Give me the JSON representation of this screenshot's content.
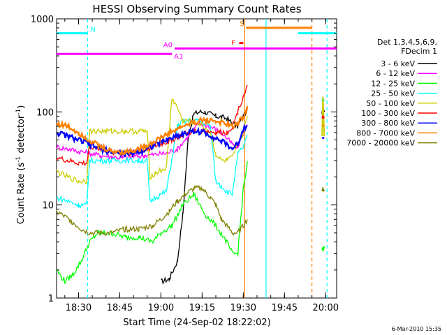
{
  "chart_data": {
    "type": "line",
    "title": "HESSI Observing Summary Count Rates",
    "xlabel": "Start Time (24-Sep-02 18:22:02)",
    "ylabel_main": "Count Rate (s",
    "ylabel_sup1": "-1",
    "ylabel_mid": " detector",
    "ylabel_sup2": "-1",
    "ylabel_end": ")",
    "y_scale": "log",
    "ylim": [
      1,
      1000
    ],
    "xlim_minutes": [
      0,
      102
    ],
    "x_ticks": [
      {
        "minute": 8,
        "label": "18:30"
      },
      {
        "minute": 23,
        "label": "18:45"
      },
      {
        "minute": 38,
        "label": "19:00"
      },
      {
        "minute": 53,
        "label": "19:15"
      },
      {
        "minute": 68,
        "label": "19:30"
      },
      {
        "minute": 83,
        "label": "19:45"
      },
      {
        "minute": 98,
        "label": "20:00"
      }
    ],
    "y_ticks": [
      {
        "value": 1,
        "label": "1"
      },
      {
        "value": 10,
        "label": "10"
      },
      {
        "value": 100,
        "label": "100"
      },
      {
        "value": 1000,
        "label": "1000"
      }
    ],
    "legend_title1": "Det 1,3,4,5,6,9,",
    "legend_title2": "FDecim 1",
    "legend_position": "right",
    "series": [
      {
        "name": "3 - 6 keV",
        "color": "#000000",
        "x": [
          0,
          5,
          10,
          15,
          20,
          25,
          30,
          35,
          38,
          41,
          44,
          46,
          48,
          50,
          52,
          54,
          56,
          58,
          60,
          62,
          64,
          66,
          68,
          69.5
        ],
        "y": [
          null,
          null,
          null,
          null,
          null,
          null,
          null,
          null,
          1.5,
          1.6,
          2.5,
          8,
          55,
          95,
          100,
          100,
          95,
          90,
          88,
          85,
          75,
          70,
          90,
          105
        ]
      },
      {
        "name": "6 - 12 keV",
        "color": "#ff00ff",
        "x": [
          0,
          4,
          8,
          12,
          16,
          20,
          24,
          28,
          32,
          36,
          40,
          44,
          48,
          52,
          56,
          60,
          64,
          66,
          68,
          69.5
        ],
        "y": [
          42,
          40,
          38,
          36,
          34,
          33,
          32,
          33,
          34,
          35,
          36,
          40,
          55,
          75,
          70,
          60,
          45,
          42,
          60,
          75
        ]
      },
      {
        "name": "12 - 25 keV",
        "color": "#00ff00",
        "x": [
          0,
          3,
          6,
          9,
          12,
          15,
          20,
          25,
          30,
          35,
          38,
          42,
          46,
          50,
          54,
          58,
          62,
          64,
          66,
          68,
          69.5
        ],
        "y": [
          2,
          1.5,
          1.8,
          2.5,
          4,
          5,
          5,
          4.5,
          4.5,
          4,
          5,
          6,
          10,
          13,
          8,
          6,
          4,
          3,
          3,
          15,
          28
        ]
      },
      {
        "name": "25 - 50 keV",
        "color": "#00ffff",
        "x": [
          0,
          4,
          8,
          11,
          12,
          16,
          20,
          25,
          30,
          33,
          34,
          36,
          40,
          44,
          46,
          48,
          52,
          56,
          58,
          60,
          62,
          64,
          66,
          68,
          69.5
        ],
        "y": [
          12,
          11,
          10,
          10,
          30,
          30,
          30,
          30,
          30,
          30,
          11,
          12,
          14,
          70,
          78,
          80,
          80,
          70,
          18,
          16,
          14,
          13,
          35,
          42,
          55
        ]
      },
      {
        "name": "50 - 100 keV",
        "color": "#cccc00",
        "x": [
          0,
          4,
          8,
          11,
          12,
          16,
          20,
          25,
          30,
          33,
          34,
          36,
          40,
          42,
          44,
          46,
          48,
          52,
          56,
          58,
          60,
          62,
          64,
          66,
          68,
          69.5
        ],
        "y": [
          23,
          20,
          18,
          18,
          62,
          62,
          62,
          62,
          62,
          62,
          20,
          22,
          25,
          140,
          110,
          80,
          80,
          75,
          60,
          35,
          30,
          30,
          32,
          45,
          60,
          90
        ]
      },
      {
        "name": "100 - 300 keV",
        "color": "#ff0000",
        "x": [
          0,
          4,
          8,
          11,
          12,
          16,
          20,
          25,
          30,
          35,
          40,
          45,
          50,
          54,
          58,
          62,
          64,
          66,
          68,
          69.5
        ],
        "y": [
          32,
          30,
          28,
          28,
          43,
          40,
          37,
          36,
          38,
          42,
          47,
          55,
          62,
          62,
          60,
          60,
          70,
          100,
          150,
          190
        ]
      },
      {
        "name": "300 - 800 keV",
        "color": "#0000ff",
        "x": [
          0,
          4,
          8,
          12,
          16,
          20,
          25,
          30,
          35,
          40,
          45,
          50,
          54,
          58,
          62,
          64,
          66,
          68,
          69.5
        ],
        "y": [
          60,
          55,
          50,
          45,
          40,
          37,
          35,
          37,
          43,
          50,
          57,
          62,
          60,
          52,
          45,
          40,
          45,
          65,
          75
        ]
      },
      {
        "name": "800 - 7000 keV",
        "color": "#ff8000",
        "x": [
          0,
          4,
          8,
          12,
          16,
          20,
          25,
          30,
          35,
          40,
          45,
          50,
          54,
          58,
          62,
          64,
          66,
          68,
          69.5
        ],
        "y": [
          75,
          70,
          60,
          50,
          42,
          38,
          37,
          40,
          47,
          57,
          68,
          78,
          82,
          80,
          73,
          70,
          75,
          90,
          110
        ]
      },
      {
        "name": "7000 - 20000 keV",
        "color": "#808000",
        "x": [
          0,
          3,
          6,
          9,
          12,
          15,
          20,
          25,
          30,
          35,
          38,
          41,
          44,
          47,
          50,
          53,
          56,
          58,
          60,
          62,
          64,
          66,
          68,
          69.5
        ],
        "y": [
          8.5,
          7.5,
          6.5,
          5.5,
          5,
          5,
          5,
          5.5,
          5.5,
          6,
          7,
          8.5,
          11,
          13,
          15,
          15,
          12,
          10,
          7,
          6,
          5,
          5,
          6,
          7
        ]
      }
    ],
    "late_points": [
      {
        "name": "3 - 6 keV",
        "x": [
          96.7,
          97,
          97.5
        ],
        "y": [
          95,
          110,
          100
        ]
      },
      {
        "name": "12 - 25 keV",
        "x": [
          96.7,
          97,
          97.5
        ],
        "y": [
          3.5,
          3.2,
          3.6
        ]
      },
      {
        "name": "25 - 50 keV",
        "x": [
          96.7,
          97,
          97.5
        ],
        "y": [
          130,
          140,
          130
        ]
      },
      {
        "name": "50 - 100 keV",
        "x": [
          96.7,
          97,
          97.5
        ],
        "y": [
          55,
          145,
          55
        ]
      },
      {
        "name": "100 - 300 keV",
        "x": [
          96.7,
          97,
          97.5
        ],
        "y": [
          85,
          90,
          85
        ]
      },
      {
        "name": "300 - 800 keV",
        "x": [
          96.7,
          97,
          97.5
        ],
        "y": [
          53,
          52,
          53
        ]
      },
      {
        "name": "800 - 7000 keV",
        "x": [
          96.7,
          97,
          97.5
        ],
        "y": [
          70,
          72,
          70
        ]
      },
      {
        "name": "7000 - 20000 keV",
        "x": [
          96.7,
          97,
          97.5
        ],
        "y": [
          14,
          15,
          14
        ]
      }
    ],
    "flag_bars": [
      {
        "label": "N",
        "color": "#00ffff",
        "x0": 0,
        "x1": 11.3,
        "y": 700
      },
      {
        "label": "",
        "color": "#00ffff",
        "x0": 88,
        "x1": 102,
        "y": 700
      },
      {
        "label": "A0",
        "color": "#ff00ff",
        "x0": 43,
        "x1": 102,
        "y": 480
      },
      {
        "label": "A1",
        "color": "#ff00ff",
        "x0": 0,
        "x1": 42,
        "y": 420
      },
      {
        "label": "S",
        "color": "#ff8000",
        "x0": 69,
        "x1": 93,
        "y": 800
      },
      {
        "label": "F",
        "color": "#ff0000",
        "x0": 66.5,
        "x1": 68,
        "y": 550
      }
    ],
    "vertical_markers": [
      {
        "x": 11.3,
        "color": "#00ffff",
        "style": "dashed"
      },
      {
        "x": 68.5,
        "color": "#ff8000",
        "style": "solid"
      },
      {
        "x": 76.3,
        "color": "#00ffff",
        "style": "solid"
      },
      {
        "x": 93,
        "color": "#ff8000",
        "style": "dashed"
      },
      {
        "x": 98.5,
        "color": "#00ffff",
        "style": "dashed"
      }
    ]
  },
  "footer": {
    "timestamp": "6-Mar-2010 15:35"
  }
}
